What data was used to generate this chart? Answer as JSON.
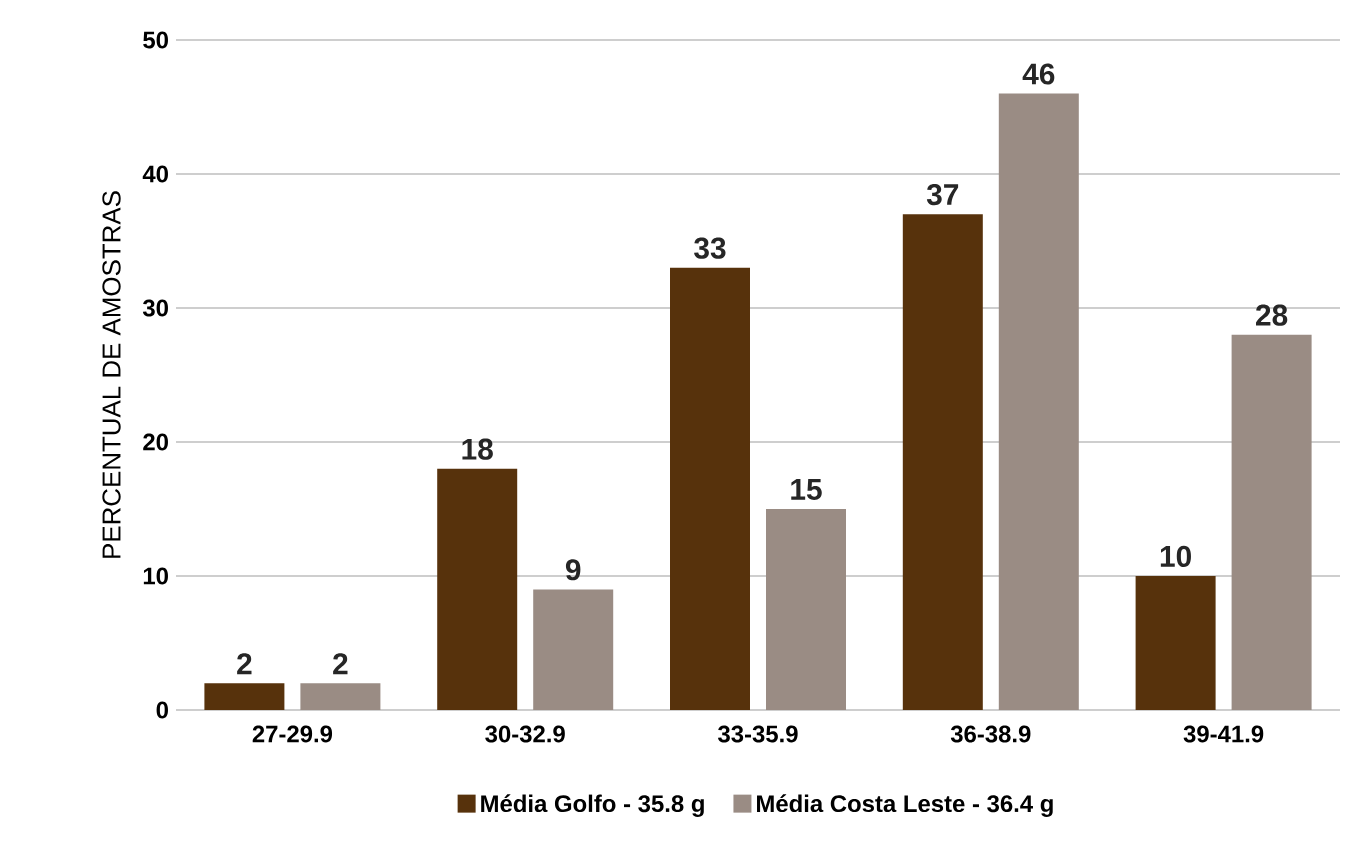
{
  "chart_data": {
    "type": "bar",
    "ylabel": "PERCENTUAL DE AMOSTRAS",
    "categories": [
      "27-29.9",
      "30-32.9",
      "33-35.9",
      "36-38.9",
      "39-41.9"
    ],
    "series": [
      {
        "name": "Média Golfo - 35.8 g",
        "color": "#57320c",
        "values": [
          2,
          18,
          33,
          37,
          10
        ]
      },
      {
        "name": "Média Costa Leste - 36.4 g",
        "color": "#9a8c84",
        "values": [
          2,
          9,
          15,
          46,
          28
        ]
      }
    ],
    "ylim": [
      0,
      50
    ],
    "yticks": [
      0,
      10,
      20,
      30,
      40,
      50
    ],
    "grid": "y",
    "legend": "bottom",
    "data_labels": true
  }
}
